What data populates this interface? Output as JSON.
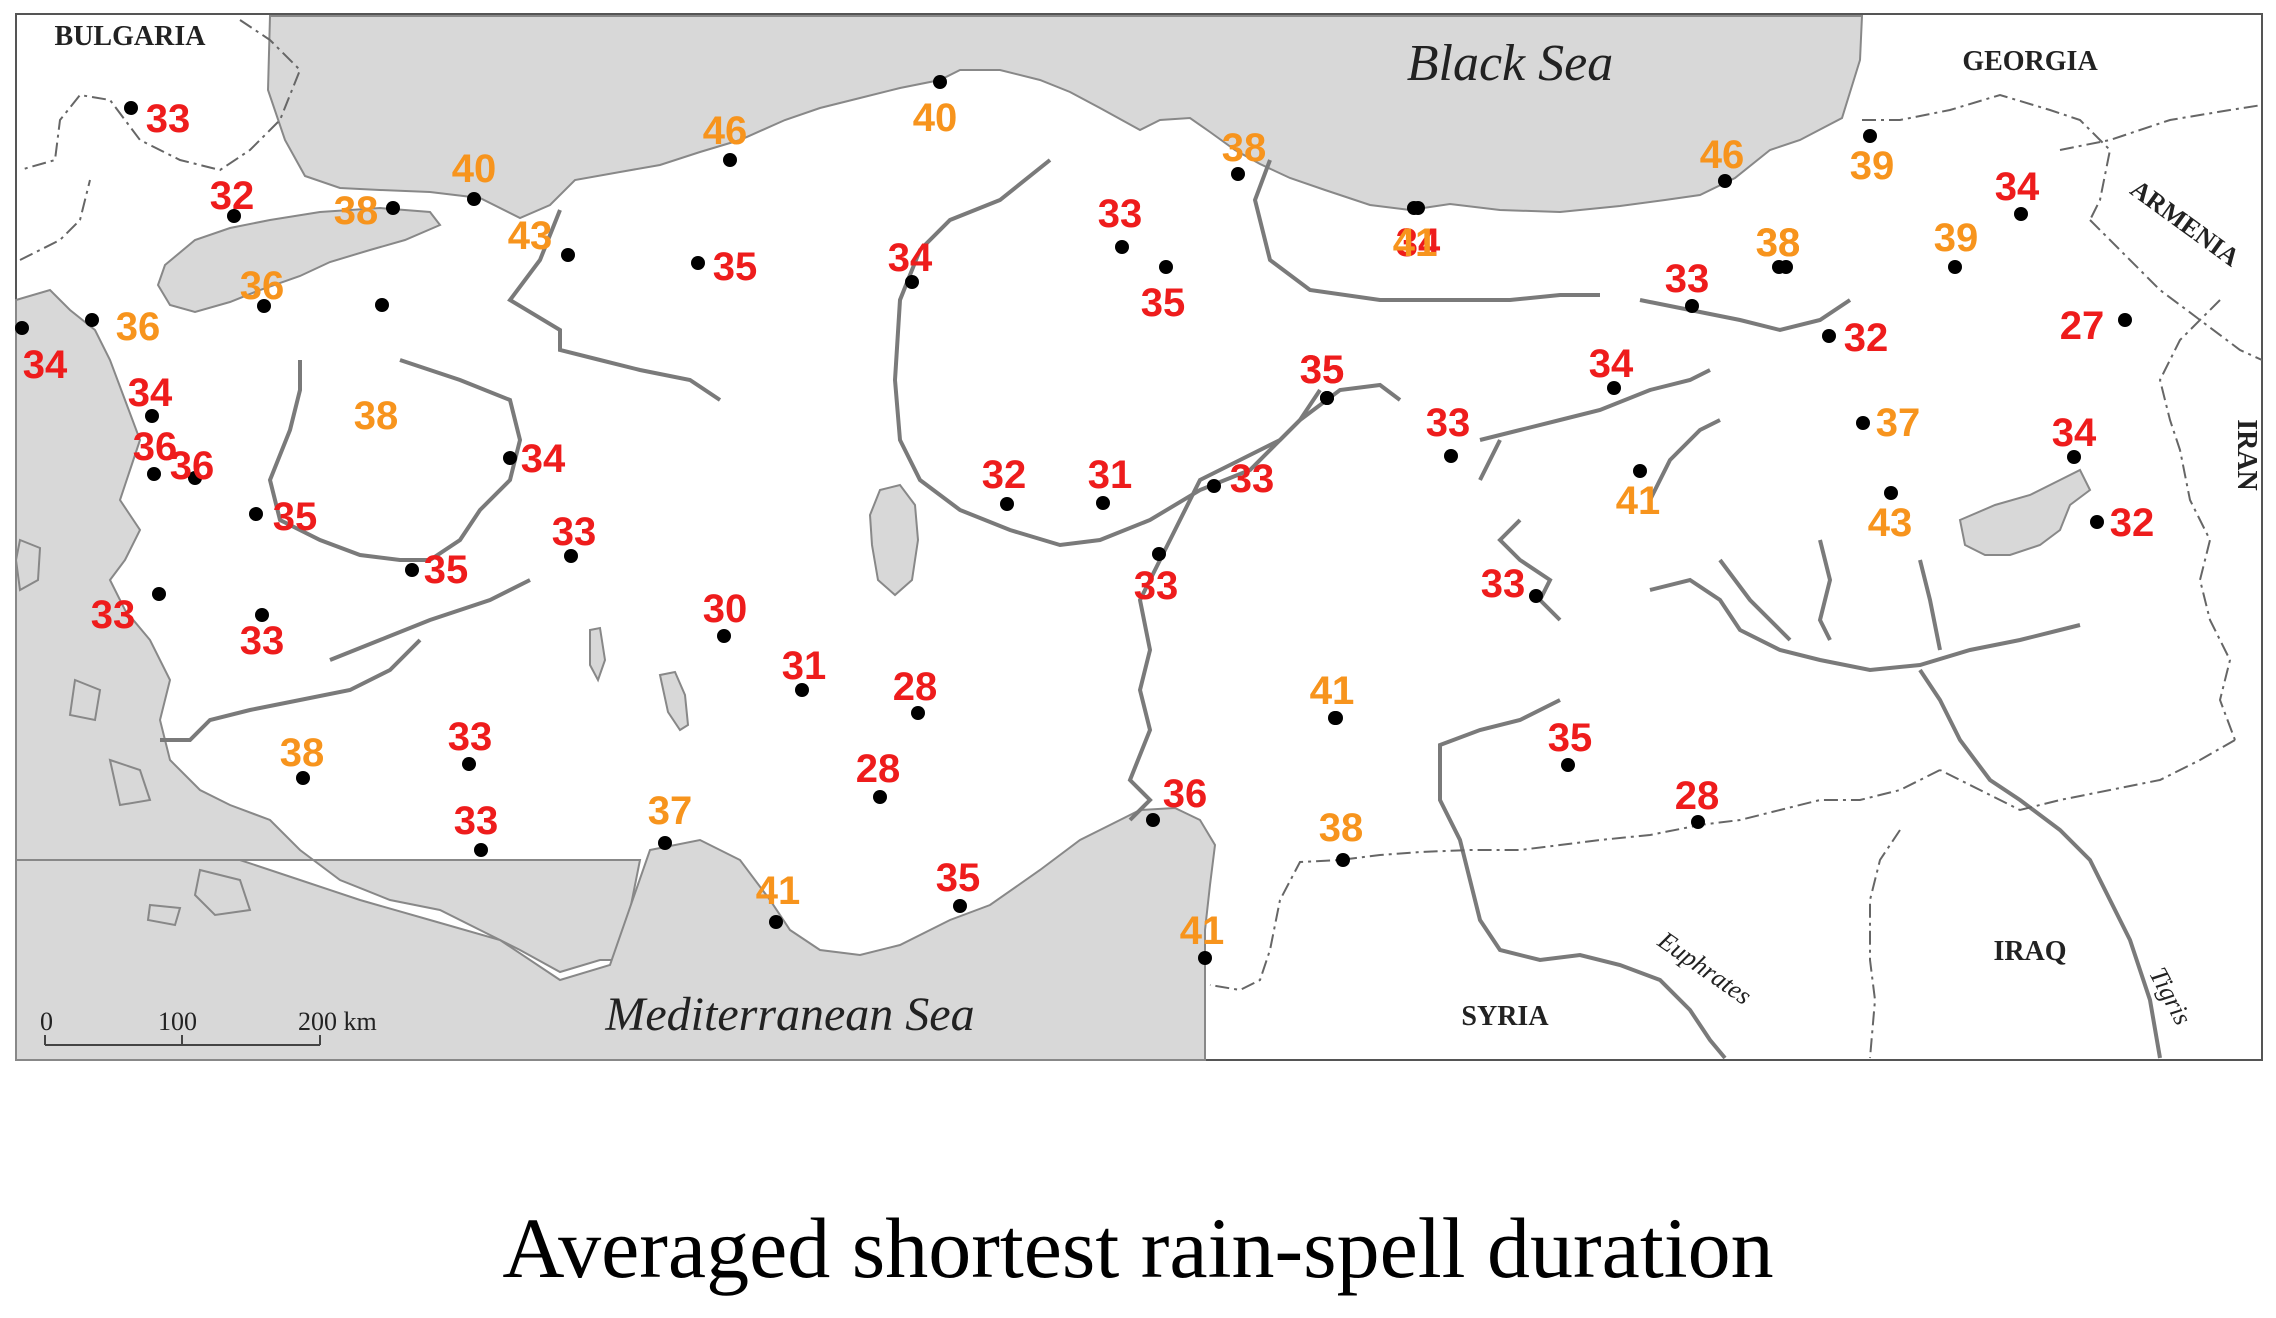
{
  "caption": "Averaged shortest rain-spell duration",
  "colors": {
    "red": "#ee1c1c",
    "orange": "#f7941d",
    "sea": "#d8d8d8",
    "land": "#ffffff",
    "river": "#7a7a7a"
  },
  "labels": {
    "black_sea": "Black Sea",
    "mediterranean": "Mediterranean Sea",
    "bulgaria": "BULGARIA",
    "georgia": "GEORGIA",
    "armenia": "ARMENIA",
    "iran": "IRAN",
    "iraq": "IRAQ",
    "syria": "SYRIA",
    "euphrates": "Euphrates",
    "tigris": "Tigris"
  },
  "scale": {
    "t0": "0",
    "t1": "100",
    "t2": "200 km"
  },
  "stations": [
    {
      "v": "33",
      "c": "red"
    },
    {
      "v": "32",
      "c": "red"
    },
    {
      "v": "38",
      "c": "orange"
    },
    {
      "v": "40",
      "c": "orange"
    },
    {
      "v": "46",
      "c": "orange"
    },
    {
      "v": "40",
      "c": "orange"
    },
    {
      "v": "43",
      "c": "orange"
    },
    {
      "v": "38",
      "c": "orange"
    },
    {
      "v": "36",
      "c": "orange"
    },
    {
      "v": "34",
      "c": "red"
    },
    {
      "v": "36",
      "c": "orange"
    },
    {
      "v": "38",
      "c": "orange"
    },
    {
      "v": "35",
      "c": "red"
    },
    {
      "v": "34",
      "c": "red"
    },
    {
      "v": "35",
      "c": "red"
    },
    {
      "v": "33",
      "c": "red"
    },
    {
      "v": "34",
      "c": "red"
    },
    {
      "v": "35",
      "c": "red"
    },
    {
      "v": "38",
      "c": "orange"
    },
    {
      "v": "41",
      "c": "orange"
    },
    {
      "v": "46",
      "c": "orange"
    },
    {
      "v": "39",
      "c": "orange"
    },
    {
      "v": "34",
      "c": "red"
    },
    {
      "v": "38",
      "c": "orange"
    },
    {
      "v": "33",
      "c": "red"
    },
    {
      "v": "39",
      "c": "orange"
    },
    {
      "v": "27",
      "c": "red"
    },
    {
      "v": "32",
      "c": "red"
    },
    {
      "v": "34",
      "c": "red"
    },
    {
      "v": "35",
      "c": "red"
    },
    {
      "v": "32",
      "c": "red"
    },
    {
      "v": "31",
      "c": "red"
    },
    {
      "v": "33",
      "c": "red"
    },
    {
      "v": "33",
      "c": "red"
    },
    {
      "v": "37",
      "c": "orange"
    },
    {
      "v": "34",
      "c": "red"
    },
    {
      "v": "32",
      "c": "red"
    },
    {
      "v": "41",
      "c": "orange"
    },
    {
      "v": "43",
      "c": "orange"
    },
    {
      "v": "34",
      "c": "red"
    },
    {
      "v": "36",
      "c": "red"
    },
    {
      "v": "35",
      "c": "red"
    },
    {
      "v": "36",
      "c": "red"
    },
    {
      "v": "34",
      "c": "red"
    },
    {
      "v": "35",
      "c": "red"
    },
    {
      "v": "33",
      "c": "red"
    },
    {
      "v": "33",
      "c": "red"
    },
    {
      "v": "33",
      "c": "red"
    },
    {
      "v": "33",
      "c": "red"
    },
    {
      "v": "41",
      "c": "orange"
    },
    {
      "v": "30",
      "c": "red"
    },
    {
      "v": "31",
      "c": "red"
    },
    {
      "v": "28",
      "c": "red"
    },
    {
      "v": "33",
      "c": "red"
    },
    {
      "v": "38",
      "c": "orange"
    },
    {
      "v": "33",
      "c": "red"
    },
    {
      "v": "28",
      "c": "red"
    },
    {
      "v": "33",
      "c": "red"
    },
    {
      "v": "36",
      "c": "red"
    },
    {
      "v": "41",
      "c": "orange"
    },
    {
      "v": "35",
      "c": "red"
    },
    {
      "v": "28",
      "c": "red"
    },
    {
      "v": "38",
      "c": "orange"
    },
    {
      "v": "37",
      "c": "orange"
    },
    {
      "v": "41",
      "c": "orange"
    },
    {
      "v": "35",
      "c": "red"
    },
    {
      "v": "41",
      "c": "orange"
    }
  ]
}
